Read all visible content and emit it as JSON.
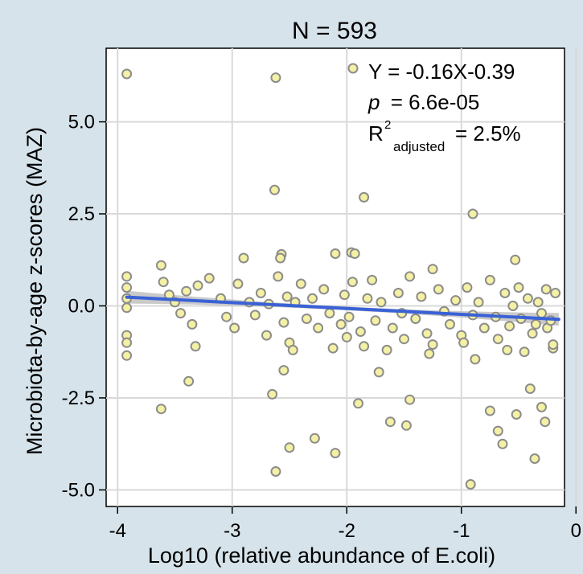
{
  "chart_data": {
    "type": "scatter",
    "title": "N = 593",
    "xlabel": "Log10 (relative abundance of E.coli)",
    "ylabel": "Microbiota-by-age z-scores (MAZ)",
    "xlim": [
      -4.1,
      -0.1
    ],
    "ylim": [
      -5.45,
      7.0
    ],
    "x_ticks": [
      -4,
      -3,
      -2,
      -1,
      0
    ],
    "x_tick_labels": [
      "-4",
      "-3",
      "-2",
      "-1",
      "0"
    ],
    "y_ticks": [
      -5.0,
      -2.5,
      0.0,
      2.5,
      5.0
    ],
    "y_tick_labels": [
      "-5.0",
      "-2.5",
      "0.0",
      "2.5",
      "5.0"
    ],
    "grid": true,
    "colors": {
      "background": "#d6e3ea",
      "panel": "#ffffff",
      "grid": "#d9d9d9",
      "point_fill": "#f4f0a4",
      "point_stroke": "#8c8c8c",
      "fit_line": "#3a62d6",
      "confidence_band": "#bdbdbd"
    },
    "fit": {
      "slope": -0.16,
      "intercept": -0.39,
      "x_range": [
        -3.92,
        -0.15
      ]
    },
    "annotation": {
      "equation": "Y = -0.16X-0.39",
      "p_symbol": "p",
      "p_value": "= 6.6e-05",
      "r2_symbol": "R",
      "r2_sup": "2",
      "r2_sub": "adjusted",
      "r2_value": "= 2.5%"
    },
    "points": [
      [
        -3.92,
        6.3
      ],
      [
        -2.62,
        6.2
      ],
      [
        -2.63,
        3.15
      ],
      [
        -1.85,
        2.95
      ],
      [
        -0.9,
        2.5
      ],
      [
        -2.57,
        1.4
      ],
      [
        -2.58,
        1.3
      ],
      [
        -2.9,
        1.3
      ],
      [
        -1.96,
        1.45
      ],
      [
        -1.93,
        1.42
      ],
      [
        -2.1,
        1.42
      ],
      [
        -1.25,
        1.0
      ],
      [
        -0.53,
        1.25
      ],
      [
        -3.62,
        1.1
      ],
      [
        -3.92,
        0.8
      ],
      [
        -3.92,
        0.5
      ],
      [
        -3.92,
        0.2
      ],
      [
        -3.92,
        -0.05
      ],
      [
        -3.92,
        -0.8
      ],
      [
        -3.92,
        -1.0
      ],
      [
        -3.92,
        -1.35
      ],
      [
        -3.62,
        -2.8
      ],
      [
        -3.38,
        -2.05
      ],
      [
        -3.32,
        -1.1
      ],
      [
        -2.98,
        -0.6
      ],
      [
        -2.65,
        -2.4
      ],
      [
        -2.62,
        -4.5
      ],
      [
        -2.55,
        -1.75
      ],
      [
        -2.5,
        -3.85
      ],
      [
        -2.28,
        -3.6
      ],
      [
        -2.1,
        -4.0
      ],
      [
        -2.0,
        -0.85
      ],
      [
        -1.9,
        -2.65
      ],
      [
        -1.72,
        -1.8
      ],
      [
        -1.62,
        -3.15
      ],
      [
        -1.48,
        -3.25
      ],
      [
        -1.45,
        -2.55
      ],
      [
        -1.25,
        -1.05
      ],
      [
        -0.92,
        -4.85
      ],
      [
        -0.88,
        -1.45
      ],
      [
        -0.75,
        -2.85
      ],
      [
        -0.68,
        -3.4
      ],
      [
        -0.64,
        -3.75
      ],
      [
        -0.52,
        -2.95
      ],
      [
        -0.4,
        -2.25
      ],
      [
        -0.36,
        -4.15
      ],
      [
        -0.3,
        -2.75
      ],
      [
        -0.27,
        -3.15
      ],
      [
        -0.45,
        -1.25
      ],
      [
        -0.6,
        -1.2
      ],
      [
        -0.2,
        -1.15
      ],
      [
        -0.18,
        0.35
      ],
      [
        -0.2,
        -1.05
      ],
      [
        -0.25,
        -0.6
      ],
      [
        -0.35,
        -0.5
      ],
      [
        -3.6,
        0.65
      ],
      [
        -3.55,
        0.3
      ],
      [
        -3.5,
        0.1
      ],
      [
        -3.45,
        -0.2
      ],
      [
        -3.4,
        0.4
      ],
      [
        -3.35,
        -0.5
      ],
      [
        -3.3,
        0.55
      ],
      [
        -3.2,
        0.75
      ],
      [
        -3.1,
        0.2
      ],
      [
        -3.05,
        -0.3
      ],
      [
        -2.95,
        0.6
      ],
      [
        -2.85,
        0.1
      ],
      [
        -2.8,
        -0.25
      ],
      [
        -2.75,
        0.35
      ],
      [
        -2.7,
        -0.8
      ],
      [
        -2.68,
        0.05
      ],
      [
        -2.6,
        0.8
      ],
      [
        -2.55,
        -0.45
      ],
      [
        -2.52,
        0.25
      ],
      [
        -2.5,
        -1.0
      ],
      [
        -2.47,
        -1.2
      ],
      [
        -2.45,
        0.1
      ],
      [
        -2.4,
        0.6
      ],
      [
        -2.35,
        -0.35
      ],
      [
        -2.3,
        0.2
      ],
      [
        -2.25,
        -0.6
      ],
      [
        -2.2,
        0.45
      ],
      [
        -2.15,
        -0.2
      ],
      [
        -2.12,
        -1.15
      ],
      [
        -2.05,
        -0.5
      ],
      [
        -2.02,
        0.3
      ],
      [
        -1.98,
        -0.3
      ],
      [
        -1.95,
        0.65
      ],
      [
        -1.88,
        -0.7
      ],
      [
        -1.85,
        -1.1
      ],
      [
        -1.82,
        0.2
      ],
      [
        -1.78,
        0.7
      ],
      [
        -1.75,
        -0.4
      ],
      [
        -1.7,
        0.1
      ],
      [
        -1.65,
        -1.2
      ],
      [
        -1.6,
        -0.6
      ],
      [
        -1.55,
        0.35
      ],
      [
        -1.52,
        -0.2
      ],
      [
        -1.5,
        -0.9
      ],
      [
        -1.45,
        0.8
      ],
      [
        -1.4,
        -0.35
      ],
      [
        -1.35,
        0.25
      ],
      [
        -1.3,
        -0.75
      ],
      [
        -1.28,
        -1.3
      ],
      [
        -1.2,
        0.45
      ],
      [
        -1.15,
        -0.15
      ],
      [
        -1.1,
        -0.5
      ],
      [
        -1.05,
        0.15
      ],
      [
        -1.0,
        -0.8
      ],
      [
        -0.98,
        -1.0
      ],
      [
        -0.95,
        0.5
      ],
      [
        -0.9,
        -0.25
      ],
      [
        -0.85,
        0.1
      ],
      [
        -0.8,
        -0.6
      ],
      [
        -0.75,
        0.7
      ],
      [
        -0.7,
        -0.3
      ],
      [
        -0.68,
        -0.9
      ],
      [
        -0.62,
        0.35
      ],
      [
        -0.58,
        -0.55
      ],
      [
        -0.55,
        0.0
      ],
      [
        -0.5,
        0.5
      ],
      [
        -0.48,
        -0.35
      ],
      [
        -0.42,
        0.2
      ],
      [
        -0.38,
        -0.75
      ],
      [
        -0.33,
        0.1
      ],
      [
        -0.3,
        -0.2
      ],
      [
        -0.26,
        0.45
      ],
      [
        -0.22,
        -0.4
      ]
    ]
  }
}
